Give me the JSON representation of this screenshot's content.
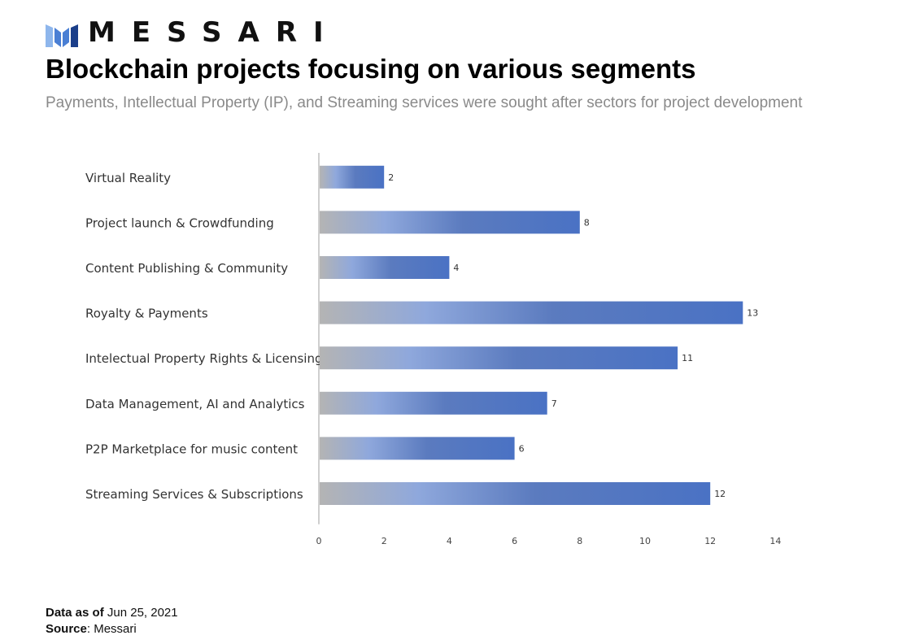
{
  "brand": {
    "name": "MESSARI",
    "logo_icon": "messari-logo-icon",
    "logo_colors": [
      "#1b3f8a",
      "#4a7fd4",
      "#8eb6ec"
    ]
  },
  "header": {
    "title": "Blockchain projects focusing on various segments",
    "subtitle": "Payments, Intellectual Property (IP), and Streaming services were sought after sectors for project development"
  },
  "chart_data": {
    "type": "bar",
    "orientation": "horizontal",
    "categories": [
      "Virtual Reality",
      "Project launch & Crowdfunding",
      "Content Publishing & Community",
      "Royalty & Payments",
      "Intelectual Property Rights & Licensing",
      "Data Management, AI and Analytics",
      "P2P Marketplace for music content",
      "Streaming Services & Subscriptions"
    ],
    "values": [
      2,
      8,
      4,
      13,
      11,
      7,
      6,
      12
    ],
    "data_labels": [
      "2",
      "8",
      "4",
      "13",
      "11",
      "7",
      "6",
      "12"
    ],
    "xlim": [
      0,
      14
    ],
    "x_ticks": [
      "0",
      "2",
      "4",
      "6",
      "8",
      "10",
      "12",
      "14"
    ],
    "grid": false,
    "bar_colors": [
      "#b4b4b4",
      "#8fa8dc",
      "#5b7bbf",
      "#4a72c4"
    ]
  },
  "footer": {
    "data_as_of_label": "Data as of",
    "data_as_of_value": "Jun 25, 2021",
    "source_label": "Source",
    "source_value": ": Messari"
  }
}
